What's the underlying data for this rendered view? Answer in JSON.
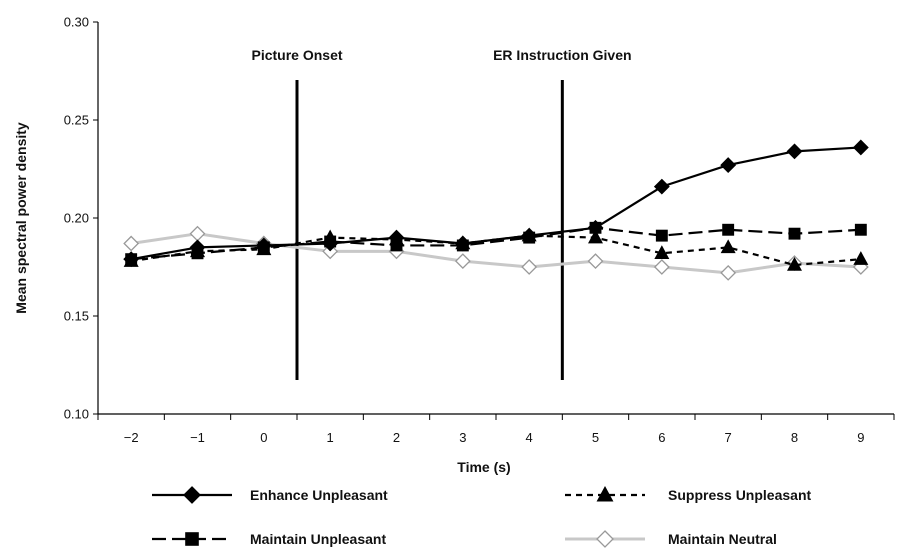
{
  "chart_data": {
    "type": "line",
    "xlabel": "Time (s)",
    "ylabel": "Mean spectral power density",
    "x": [
      -2,
      -1,
      0,
      1,
      2,
      3,
      4,
      5,
      6,
      7,
      8,
      9
    ],
    "x_tick_labels": [
      "−2",
      "−1",
      "0",
      "1",
      "2",
      "3",
      "4",
      "5",
      "6",
      "7",
      "8",
      "9"
    ],
    "xlim": [
      -2.5,
      9.5
    ],
    "ylim": [
      0.1,
      0.3
    ],
    "y_ticks": [
      0.1,
      0.15,
      0.2,
      0.25,
      0.3
    ],
    "y_tick_labels": [
      "0.10",
      "0.15",
      "0.20",
      "0.25",
      "0.30"
    ],
    "grid": false,
    "legend_position": "bottom",
    "annotations": [
      {
        "text": "Picture Onset",
        "x": 0.5
      },
      {
        "text": "ER Instruction Given",
        "x": 4.5
      }
    ],
    "series": [
      {
        "name": "Enhance Unpleasant",
        "color": "#000000",
        "dash": "solid",
        "marker": "diamond-filled",
        "values": [
          0.179,
          0.185,
          0.186,
          0.187,
          0.19,
          0.187,
          0.191,
          0.195,
          0.216,
          0.227,
          0.234,
          0.236
        ]
      },
      {
        "name": "Suppress Unpleasant",
        "color": "#000000",
        "dash": "short-dash",
        "marker": "triangle-filled",
        "values": [
          0.178,
          0.183,
          0.184,
          0.19,
          0.189,
          0.187,
          0.191,
          0.19,
          0.182,
          0.185,
          0.176,
          0.179
        ]
      },
      {
        "name": "Maintain Unpleasant",
        "color": "#000000",
        "dash": "long-dash",
        "marker": "square-filled",
        "values": [
          0.179,
          0.182,
          0.185,
          0.188,
          0.186,
          0.186,
          0.19,
          0.195,
          0.191,
          0.194,
          0.192,
          0.194
        ]
      },
      {
        "name": "Maintain Neutral",
        "color": "#c8c8c8",
        "dash": "solid",
        "marker": "diamond-open",
        "values": [
          0.187,
          0.192,
          0.187,
          0.183,
          0.183,
          0.178,
          0.175,
          0.178,
          0.175,
          0.172,
          0.177,
          0.175
        ]
      }
    ]
  }
}
